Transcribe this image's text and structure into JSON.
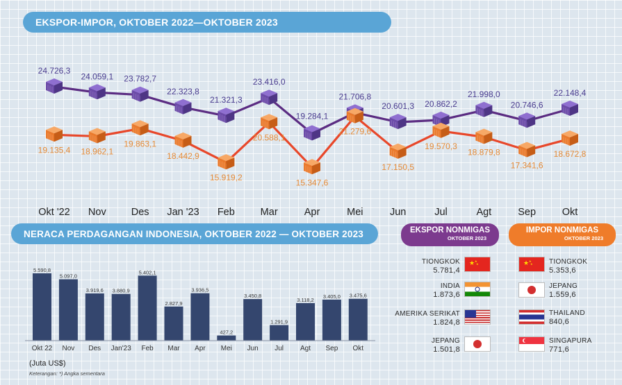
{
  "title_top": "EKSPOR-IMPOR, OKTOBER 2022—OKTOBER 2023",
  "title_mid": "NERACA PERDAGANGAN INDONESIA, OKTOBER 2022 — OKTOBER 2023",
  "unit_note": "(Juta US$)",
  "footnote": "Keterangan: *) Angka sementara",
  "colors": {
    "ekspor": "#5b2c82",
    "impor": "#e8472a",
    "ekspor_label": "#4a3c8f",
    "impor_label": "#e58a36",
    "bar": "#34466e",
    "banner": "#5aa5d6"
  },
  "chart_data": [
    {
      "type": "line",
      "title": "EKSPOR-IMPOR, OKTOBER 2022—OKTOBER 2023",
      "categories": [
        "Okt '22",
        "Nov",
        "Des",
        "Jan '23",
        "Feb",
        "Mar",
        "Apr",
        "Mei",
        "Jun",
        "Jul",
        "Agt",
        "Sep",
        "Okt"
      ],
      "series": [
        {
          "values": [
            24726.3,
            24059.1,
            23782.7,
            22323.8,
            21321.3,
            23416.0,
            19284.1,
            21706.8,
            20601.3,
            20862.2,
            21998.0,
            20746.6,
            22148.4
          ],
          "labels": [
            "24.726,3",
            "24.059,1",
            "23.782,7",
            "22.323,8",
            "21.321,3",
            "23.416,0",
            "19.284,1",
            "21.706,8",
            "20.601,3",
            "20.862,2",
            "21.998,0",
            "20.746,6",
            "22.148,4"
          ]
        },
        {
          "values": [
            19135.4,
            18962.1,
            19863.1,
            18442.9,
            15919.2,
            20588.1,
            15347.6,
            21279.6,
            17150.5,
            19570.3,
            18879.8,
            17341.6,
            18672.8
          ],
          "labels": [
            "19.135,4",
            "18.962,1",
            "19.863,1",
            "18.442,9",
            "15.919,2",
            "20.588,1",
            "15.347,6",
            "21.279,6",
            "17.150,5",
            "19.570,3",
            "18.879,8",
            "17.341,6",
            "18.672,8"
          ]
        }
      ]
    },
    {
      "type": "bar",
      "title": "NERACA PERDAGANGAN INDONESIA, OKTOBER 2022 — OKTOBER 2023",
      "ylabel": "(Juta US$)",
      "categories": [
        "Okt 22",
        "Nov",
        "Des",
        "Jan'23",
        "Feb",
        "Mar",
        "Apr",
        "Mei",
        "Jun",
        "Jul",
        "Agt",
        "Sep",
        "Okt"
      ],
      "values": [
        5590.8,
        5097.0,
        3919.6,
        3880.9,
        5402.1,
        2827.9,
        3936.5,
        427.2,
        3450.8,
        1291.9,
        3118.2,
        3405.0,
        3475.6
      ],
      "labels": [
        "5.590,8",
        "5.097,0",
        "3.919,6",
        "3.880,9",
        "5.402,1",
        "2.827,9",
        "3.936,5",
        "427,2",
        "3.450,8",
        "1.291,9",
        "3.118,2",
        "3.405,0",
        "3.475,6"
      ]
    }
  ],
  "ekspor_nonmigas": {
    "title": "EKSPOR NONMIGAS",
    "subtitle": "OKTOBER 2023",
    "countries": [
      {
        "name": "TIONGKOK",
        "value": "5.781,4",
        "flag": "china-flag"
      },
      {
        "name": "INDIA",
        "value": "1.873,6",
        "flag": "india-flag"
      },
      {
        "name": "AMERIKA SERIKAT",
        "value": "1.824,8",
        "flag": "usa-flag"
      },
      {
        "name": "JEPANG",
        "value": "1.501,8",
        "flag": "japan-flag"
      }
    ]
  },
  "impor_nonmigas": {
    "title": "IMPOR NONMIGAS",
    "subtitle": "OKTOBER 2023",
    "countries": [
      {
        "name": "TIONGKOK",
        "value": "5.353,6",
        "flag": "china-flag"
      },
      {
        "name": "JEPANG",
        "value": "1.559,6",
        "flag": "japan-flag"
      },
      {
        "name": "THAILAND",
        "value": "840,6",
        "flag": "thailand-flag"
      },
      {
        "name": "SINGAPURA",
        "value": "771,6",
        "flag": "singapore-flag"
      }
    ]
  }
}
